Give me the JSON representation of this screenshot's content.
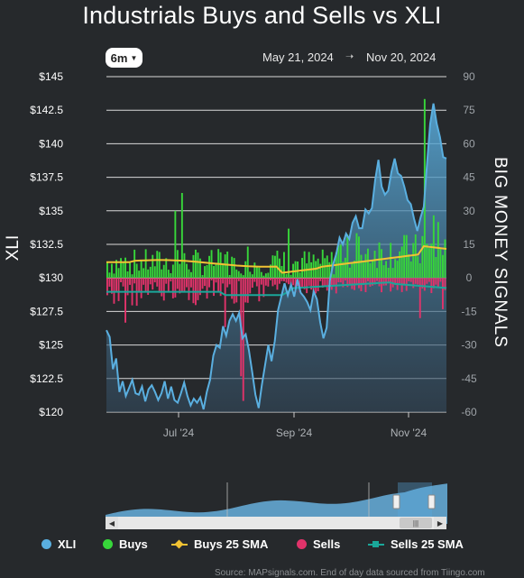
{
  "title": "Industrials Buys and Sells vs XLI",
  "range_button": {
    "label": "6m"
  },
  "date_range": {
    "start": "May 21, 2024",
    "end": "Nov 20, 2024"
  },
  "chart_data": {
    "type": "line",
    "left_axis": {
      "label": "XLI",
      "ticks": [
        "$145",
        "$142.5",
        "$140",
        "$137.5",
        "$135",
        "$132.5",
        "$130",
        "$127.5",
        "$125",
        "$122.5",
        "$120"
      ],
      "range": [
        120,
        145
      ]
    },
    "right_axis": {
      "label": "BIG MONEY SIGNALS",
      "ticks": [
        "90",
        "75",
        "60",
        "45",
        "30",
        "15",
        "0",
        "-15",
        "-30",
        "-45",
        "-60"
      ],
      "range": [
        -60,
        90
      ]
    },
    "x_ticks": [
      "Jul '24",
      "Sep '24",
      "Nov '24"
    ],
    "series": [
      {
        "name": "XLI",
        "color": "#5aafe0",
        "values": [
          126.1,
          125.6,
          123.2,
          124.0,
          121.5,
          122.3,
          121.2,
          121.8,
          122.4,
          121.4,
          121.3,
          121.9,
          120.8,
          121.7,
          122.0,
          121.5,
          120.9,
          121.4,
          122.3,
          121.0,
          121.9,
          120.9,
          120.7,
          121.4,
          122.2,
          121.2,
          120.5,
          121.0,
          120.7,
          121.1,
          120.2,
          121.5,
          122.4,
          124.2,
          125.0,
          124.8,
          126.4,
          125.7,
          126.8,
          127.3,
          126.8,
          127.4,
          125.5,
          125.8,
          124.6,
          123.0,
          121.3,
          120.3,
          122.0,
          123.5,
          125.0,
          123.8,
          125.3,
          127.6,
          128.6,
          129.6,
          128.7,
          129.5,
          128.6,
          129.9,
          128.9,
          128.6,
          128.2,
          127.6,
          129.0,
          128.4,
          126.7,
          125.5,
          126.3,
          129.8,
          131.0,
          131.8,
          133.0,
          132.5,
          133.3,
          132.9,
          134.1,
          134.6,
          133.7,
          133.7,
          135.1,
          134.8,
          135.2,
          137.3,
          138.8,
          136.8,
          136.2,
          136.5,
          137.9,
          138.9,
          137.8,
          137.6,
          136.8,
          135.8,
          135.5,
          134.4,
          133.5,
          134.5,
          135.3,
          138.5,
          141.5,
          143.0,
          141.5,
          140.5,
          139.0,
          138.9
        ]
      },
      {
        "name": "Buys",
        "color": "#37d63a"
      },
      {
        "name": "Buys 25 SMA",
        "color": "#f2c233"
      },
      {
        "name": "Sells",
        "color": "#e0336a"
      },
      {
        "name": "Sells 25 SMA",
        "color": "#1aa89a"
      }
    ],
    "grid": true,
    "legend_position": "bottom"
  },
  "legend": [
    {
      "label": "XLI",
      "color": "#5aafe0",
      "marker": "dot"
    },
    {
      "label": "Buys",
      "color": "#37d63a",
      "marker": "dot"
    },
    {
      "label": "Buys 25 SMA",
      "color": "#f2c233",
      "marker": "diamond-line"
    },
    {
      "label": "Sells",
      "color": "#e0336a",
      "marker": "dot"
    },
    {
      "label": "Sells 25 SMA",
      "color": "#1aa89a",
      "marker": "square-line"
    }
  ],
  "source": "Source: MAPsignals.com. End of day data sourced from Tiingo.com"
}
